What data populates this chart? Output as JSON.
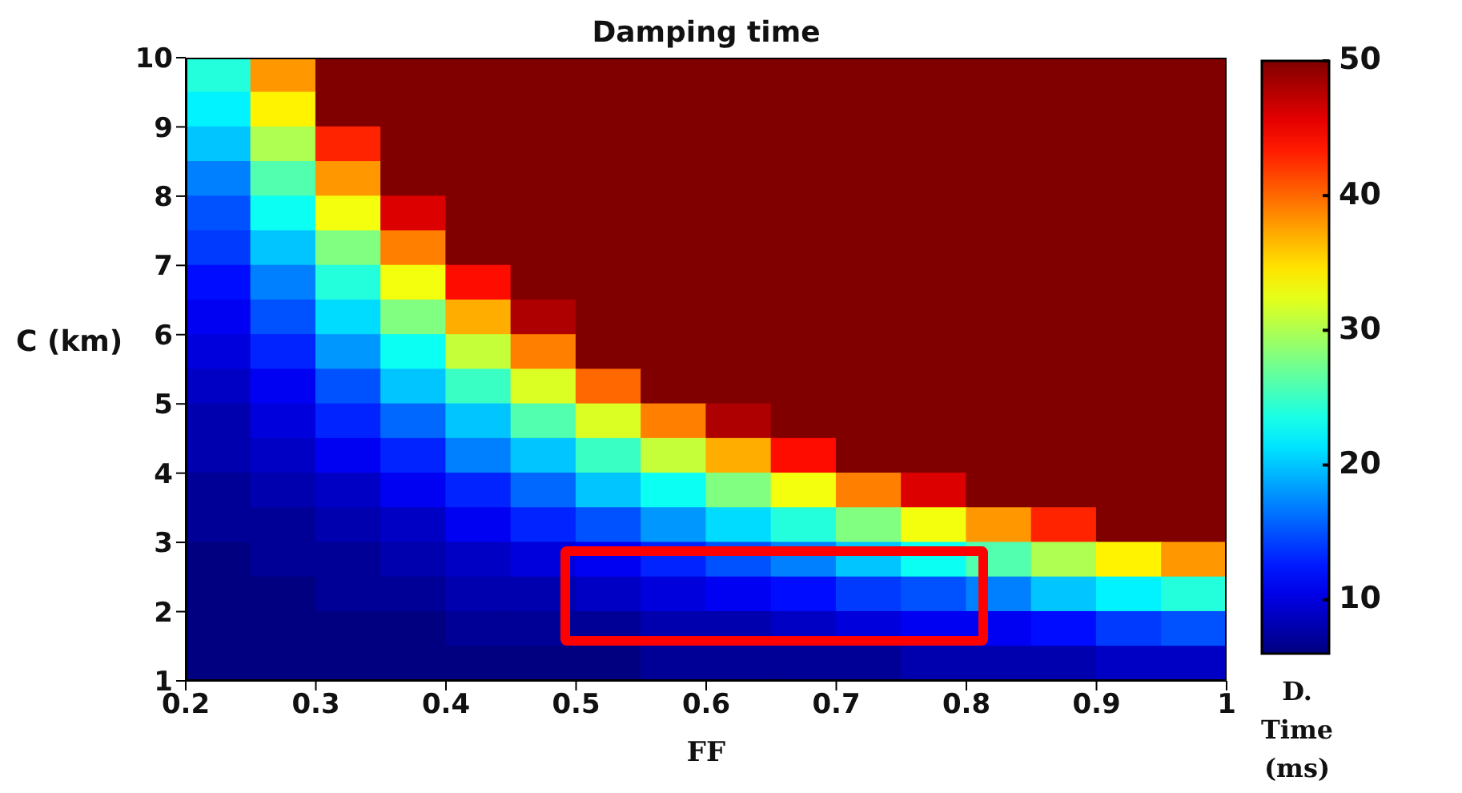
{
  "chart_data": {
    "type": "heatmap",
    "title": "Damping time",
    "xlabel": "FF",
    "ylabel": "C (km)",
    "clabel": "D. Time (ms)",
    "xlim": [
      0.2,
      1
    ],
    "xticks": [
      0.2,
      0.3,
      0.4,
      0.5,
      0.6,
      0.7,
      0.8,
      0.9,
      1
    ],
    "ylim": [
      1,
      10
    ],
    "yticks": [
      1,
      2,
      3,
      4,
      5,
      6,
      7,
      8,
      9,
      10
    ],
    "clim": [
      6,
      50
    ],
    "cticks": [
      10,
      20,
      30,
      40,
      50
    ],
    "cells": [
      [
        24,
        38,
        50,
        50,
        50,
        50,
        50,
        50,
        50,
        50,
        50,
        50,
        50,
        50,
        50,
        50
      ],
      [
        22,
        34,
        50,
        50,
        50,
        50,
        50,
        50,
        50,
        50,
        50,
        50,
        50,
        50,
        50,
        50
      ],
      [
        20,
        30,
        43,
        50,
        50,
        50,
        50,
        50,
        50,
        50,
        50,
        50,
        50,
        50,
        50,
        50
      ],
      [
        17,
        26,
        38,
        50,
        50,
        50,
        50,
        50,
        50,
        50,
        50,
        50,
        50,
        50,
        50,
        50
      ],
      [
        15,
        23,
        33,
        46,
        50,
        50,
        50,
        50,
        50,
        50,
        50,
        50,
        50,
        50,
        50,
        50
      ],
      [
        14,
        20,
        28,
        39,
        50,
        50,
        50,
        50,
        50,
        50,
        50,
        50,
        50,
        50,
        50,
        50
      ],
      [
        12,
        17,
        24,
        33,
        44,
        50,
        50,
        50,
        50,
        50,
        50,
        50,
        50,
        50,
        50,
        50
      ],
      [
        11,
        15,
        21,
        28,
        37,
        48,
        50,
        50,
        50,
        50,
        50,
        50,
        50,
        50,
        50,
        50
      ],
      [
        10,
        13,
        18,
        23,
        31,
        39,
        50,
        50,
        50,
        50,
        50,
        50,
        50,
        50,
        50,
        50
      ],
      [
        9,
        11,
        15,
        20,
        25,
        32,
        40,
        50,
        50,
        50,
        50,
        50,
        50,
        50,
        50,
        50
      ],
      [
        8,
        10,
        13,
        16,
        20,
        26,
        32,
        39,
        48,
        50,
        50,
        50,
        50,
        50,
        50,
        50
      ],
      [
        8,
        9,
        11,
        13,
        17,
        20,
        25,
        31,
        37,
        44,
        50,
        50,
        50,
        50,
        50,
        50
      ],
      [
        7,
        8,
        9,
        11,
        13,
        16,
        20,
        23,
        28,
        33,
        39,
        46,
        50,
        50,
        50,
        50
      ],
      [
        7,
        7,
        8,
        9,
        11,
        13,
        15,
        18,
        21,
        24,
        28,
        33,
        38,
        43,
        50,
        50
      ],
      [
        6,
        7,
        7,
        8,
        9,
        10,
        11,
        13,
        15,
        17,
        20,
        23,
        26,
        30,
        34,
        38
      ],
      [
        6,
        6,
        7,
        7,
        8,
        8,
        9,
        10,
        11,
        12,
        14,
        15,
        17,
        20,
        22,
        24
      ],
      [
        6,
        6,
        6,
        6,
        7,
        7,
        7,
        8,
        8,
        9,
        10,
        11,
        11,
        12,
        14,
        15
      ],
      [
        6,
        6,
        6,
        6,
        6,
        6,
        6,
        7,
        7,
        7,
        7,
        8,
        8,
        8,
        9,
        9
      ]
    ]
  }
}
